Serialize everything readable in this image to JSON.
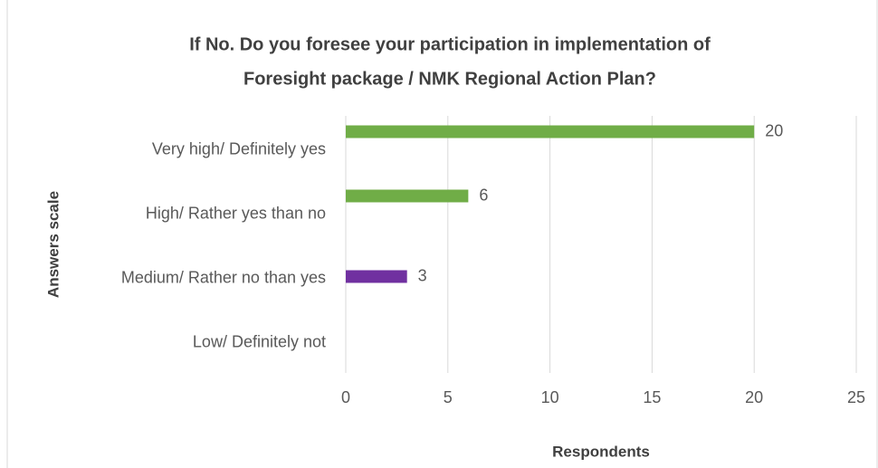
{
  "chart_data": {
    "type": "bar",
    "orientation": "horizontal",
    "title": [
      "If No. Do you foresee your participation in implementation of",
      "Foresight package / NMK Regional  Action Plan?"
    ],
    "xlabel": "Respondents",
    "ylabel": "Answers scale",
    "categories": [
      "Very high/ Definitely yes",
      "High/ Rather yes than no",
      "Medium/ Rather no than yes",
      "Low/ Definitely not"
    ],
    "values": [
      20,
      6,
      3,
      null
    ],
    "colors": [
      "#70ad47",
      "#70ad47",
      "#7030a0",
      "#70ad47"
    ],
    "xlim": [
      0,
      25
    ],
    "xticks": [
      0,
      5,
      10,
      15,
      20,
      25
    ],
    "grid": true
  }
}
